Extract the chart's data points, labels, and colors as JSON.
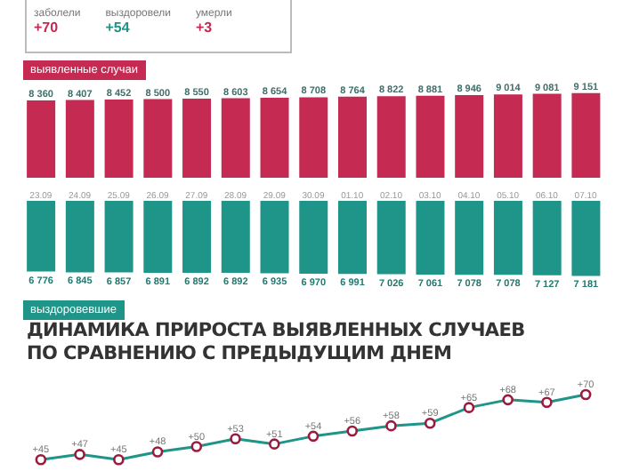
{
  "chart_data": [
    {
      "type": "bar",
      "annotations": [
        "заболели",
        "+70",
        "выздоровели",
        "+54",
        "умерли",
        "+3"
      ],
      "categories": [
        "23.09",
        "24.09",
        "25.09",
        "26.09",
        "27.09",
        "28.09",
        "29.09",
        "30.09",
        "01.10",
        "02.10",
        "03.10",
        "04.10",
        "05.10",
        "06.10",
        "07.10"
      ],
      "series": [
        {
          "name": "выявленные случаи",
          "color": "#c42a52",
          "values": [
            8360,
            8407,
            8452,
            8500,
            8550,
            8603,
            8654,
            8708,
            8764,
            8822,
            8881,
            8946,
            9014,
            9081,
            9151
          ]
        }
      ],
      "data_labels": true
    },
    {
      "type": "bar",
      "categories": [
        null,
        null,
        null,
        null,
        null,
        null,
        null,
        null,
        null,
        null,
        null,
        null,
        null,
        null,
        null
      ],
      "series": [
        {
          "name": "выздоровевшие",
          "color": "#1f9488",
          "values": [
            6776,
            6845,
            6857,
            6891,
            6892,
            6892,
            6935,
            6970,
            6991,
            7026,
            7061,
            7078,
            7078,
            7127,
            7181
          ]
        }
      ],
      "data_labels": true
    },
    {
      "type": "line",
      "title": "ДИНАМИКА ПРИРОСТА ВЫЯВЛЕННЫХ СЛУЧАЕВ ПО СРАВНЕНИЮ С ПРЕДЫДУЩИМ ДНЕМ",
      "categories": [
        null,
        null,
        null,
        null,
        null,
        null,
        null,
        null,
        null,
        null,
        null,
        null,
        null,
        null,
        null
      ],
      "marker": "circle",
      "series": [
        {
          "color": "#1f9488",
          "values": [
            45,
            47,
            45,
            48,
            50,
            53,
            51,
            54,
            56,
            58,
            59,
            65,
            68,
            67,
            70
          ],
          "value_labels": [
            "+45",
            "+47",
            "+45",
            "+48",
            "+50",
            "+53",
            "+51",
            "+54",
            "+56",
            "+58",
            "+59",
            "+65",
            "+68",
            "+67",
            "+70"
          ]
        }
      ]
    }
  ]
}
